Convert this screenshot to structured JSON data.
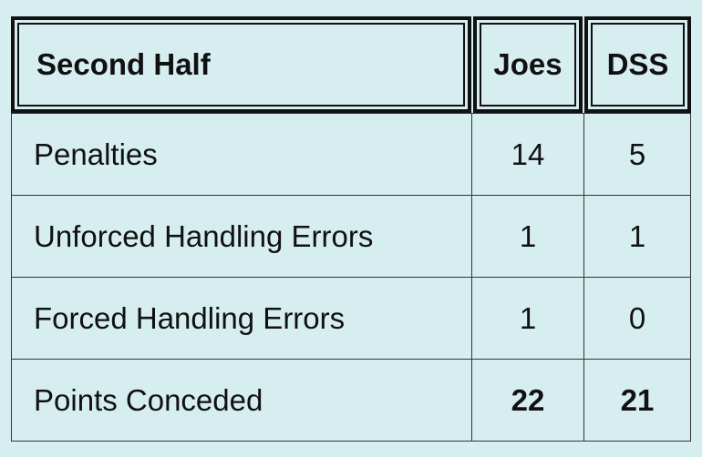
{
  "table": {
    "header": [
      "Second Half",
      "Joes",
      "DSS"
    ],
    "rows": [
      [
        "Penalties",
        14,
        5
      ],
      [
        "Unforced Handling Errors",
        1,
        1
      ],
      [
        "Forced Handling Errors",
        1,
        0
      ],
      [
        "Points Conceded",
        22,
        21
      ]
    ]
  }
}
